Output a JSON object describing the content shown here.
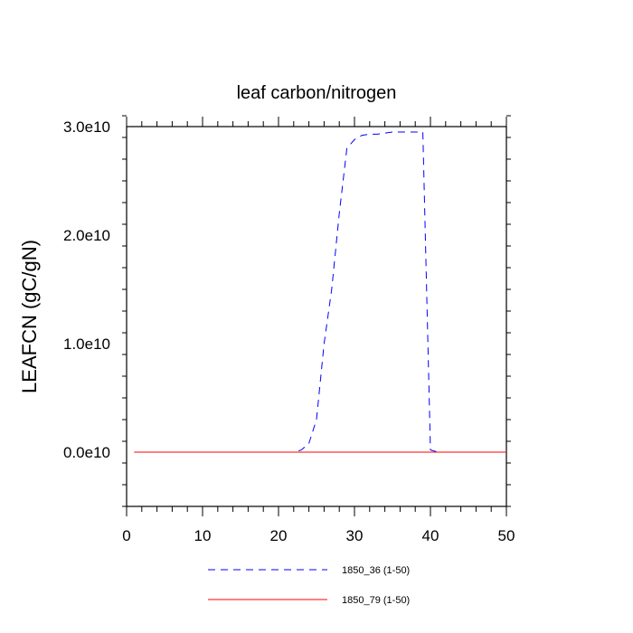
{
  "chart_data": {
    "type": "line",
    "title": "leaf carbon/nitrogen",
    "xlabel": "",
    "ylabel": "LEAFCN  (gC/gN)",
    "xlim": [
      0,
      50
    ],
    "ylim": [
      -5000000000.0,
      30000000000.0
    ],
    "xticks": [
      0,
      10,
      20,
      30,
      40,
      50
    ],
    "xtick_labels": [
      "0",
      "10",
      "20",
      "30",
      "40",
      "50"
    ],
    "yticks": [
      0,
      10000000000.0,
      20000000000.0,
      30000000000.0
    ],
    "ytick_labels": [
      "0.0e10",
      "1.0e10",
      "2.0e10",
      "3.0e10"
    ],
    "grid": false,
    "legend_position": "bottom-center",
    "series": [
      {
        "name": "1850_36 (1-50)",
        "color": "#0000ff",
        "dash": "dashed",
        "x": [
          1,
          2,
          3,
          4,
          5,
          6,
          7,
          8,
          9,
          10,
          11,
          12,
          13,
          14,
          15,
          16,
          17,
          18,
          19,
          20,
          21,
          22,
          23,
          24,
          25,
          26,
          27,
          28,
          29,
          30,
          31,
          32,
          33,
          34,
          35,
          36,
          37,
          38,
          39,
          40,
          41,
          42,
          43,
          44,
          45,
          46,
          47,
          48,
          49,
          50
        ],
        "y": [
          0,
          0,
          0,
          0,
          0,
          0,
          0,
          0,
          0,
          0,
          0,
          0,
          0,
          0,
          0,
          0,
          0,
          0,
          0,
          0,
          0,
          0,
          200000000.0,
          800000000.0,
          3000000000.0,
          10000000000.0,
          15000000000.0,
          22000000000.0,
          28000000000.0,
          28800000000.0,
          29200000000.0,
          29300000000.0,
          29300000000.0,
          29400000000.0,
          29500000000.0,
          29500000000.0,
          29500000000.0,
          29500000000.0,
          29500000000.0,
          200000000.0,
          0,
          0,
          0,
          0,
          0,
          0,
          0,
          0,
          0,
          0
        ]
      },
      {
        "name": "1850_79 (1-50)",
        "color": "#ff0000",
        "dash": "solid",
        "x": [
          1,
          50
        ],
        "y": [
          0,
          0
        ]
      }
    ]
  }
}
